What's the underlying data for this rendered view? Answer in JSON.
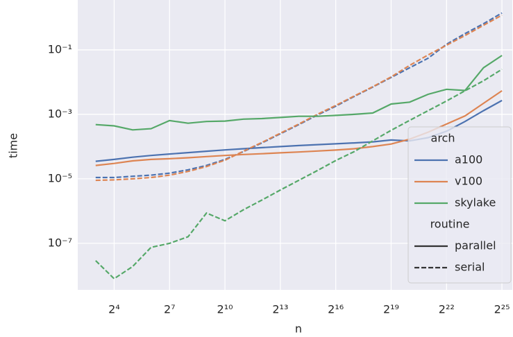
{
  "chart_data": {
    "type": "line",
    "xlabel": "n",
    "ylabel": "time",
    "x": [
      8,
      16,
      32,
      64,
      128,
      256,
      512,
      1024,
      2048,
      4096,
      8192,
      16384,
      32768,
      65536,
      131072,
      262144,
      524288,
      1048576,
      2097152,
      4194304,
      8388608,
      16777216,
      33554432
    ],
    "xscale": "log",
    "yscale": "log",
    "xlim": [
      4.08,
      49500000
    ],
    "ylim": [
      3.6e-09,
      3.53
    ],
    "xticks": [
      {
        "value": 16,
        "label": "2⁴"
      },
      {
        "value": 128,
        "label": "2⁷"
      },
      {
        "value": 1024,
        "label": "2¹⁰"
      },
      {
        "value": 8192,
        "label": "2¹³"
      },
      {
        "value": 65536,
        "label": "2¹⁶"
      },
      {
        "value": 524288,
        "label": "2¹⁹"
      },
      {
        "value": 4194304,
        "label": "2²²"
      },
      {
        "value": 33554432,
        "label": "2²⁵"
      }
    ],
    "yticks": [
      {
        "value": 1e-07,
        "label": "10⁻⁷"
      },
      {
        "value": 1e-05,
        "label": "10⁻⁵"
      },
      {
        "value": 0.001,
        "label": "10⁻³"
      },
      {
        "value": 0.1,
        "label": "10⁻¹"
      }
    ],
    "grid": true,
    "legend_loc": "lower right",
    "hue_title": "arch",
    "style_title": "routine",
    "routines": [
      {
        "name": "parallel",
        "dash": "solid"
      },
      {
        "name": "serial",
        "dash": "dashed"
      }
    ],
    "series": [
      {
        "name": "a100",
        "color": "#4c72b0",
        "values": {
          "parallel": [
            3.5e-05,
            4e-05,
            4.7e-05,
            5.3e-05,
            5.9e-05,
            6.5e-05,
            7.2e-05,
            7.9e-05,
            8.6e-05,
            9.3e-05,
            0.0001,
            0.000108,
            0.000115,
            0.000122,
            0.00013,
            0.00014,
            0.00016,
            0.00015,
            0.00019,
            0.0003,
            0.0006,
            0.0013,
            0.0027
          ],
          "serial": [
            1.1e-05,
            1.1e-05,
            1.2e-05,
            1.3e-05,
            1.5e-05,
            1.9e-05,
            2.6e-05,
            4e-05,
            7e-05,
            0.00013,
            0.00025,
            0.00048,
            0.00095,
            0.0018,
            0.0036,
            0.007,
            0.014,
            0.028,
            0.055,
            0.15,
            0.32,
            0.65,
            1.4
          ]
        }
      },
      {
        "name": "v100",
        "color": "#dd8452",
        "values": {
          "parallel": [
            2.6e-05,
            3e-05,
            3.6e-05,
            4e-05,
            4.2e-05,
            4.5e-05,
            4.9e-05,
            5.3e-05,
            5.7e-05,
            6e-05,
            6.4e-05,
            6.8e-05,
            7.3e-05,
            7.8e-05,
            8.6e-05,
            0.0001,
            0.00012,
            0.00017,
            0.00028,
            0.0005,
            0.0009,
            0.0022,
            0.0054
          ],
          "serial": [
            9e-06,
            9.3e-06,
            1e-05,
            1.1e-05,
            1.3e-05,
            1.7e-05,
            2.4e-05,
            3.8e-05,
            7.2e-05,
            0.000135,
            0.00026,
            0.0005,
            0.001,
            0.0019,
            0.0037,
            0.0072,
            0.0145,
            0.033,
            0.07,
            0.14,
            0.28,
            0.58,
            1.2
          ]
        }
      },
      {
        "name": "skylake",
        "color": "#55a868",
        "values": {
          "parallel": [
            0.00048,
            0.00044,
            0.00033,
            0.00036,
            0.00064,
            0.00053,
            0.0006,
            0.00062,
            0.00071,
            0.00074,
            0.0008,
            0.00087,
            0.00087,
            0.00093,
            0.001,
            0.0011,
            0.0021,
            0.0024,
            0.0042,
            0.006,
            0.0055,
            0.028,
            0.067
          ],
          "serial": [
            2.9e-08,
            8e-09,
            1.9e-08,
            7.5e-08,
            1e-07,
            1.6e-07,
            8.7e-07,
            5e-07,
            1.1e-06,
            2.2e-06,
            4.5e-06,
            9e-06,
            1.8e-05,
            3.7e-05,
            7e-05,
            0.00015,
            0.00032,
            0.00065,
            0.0013,
            0.0026,
            0.0054,
            0.011,
            0.025
          ]
        }
      }
    ]
  }
}
